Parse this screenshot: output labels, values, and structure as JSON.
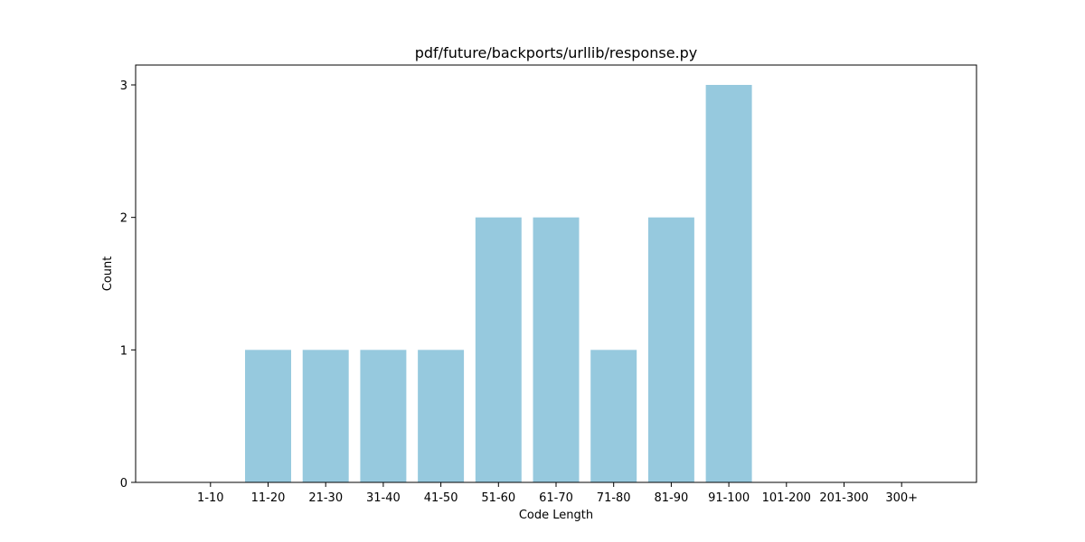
{
  "chart_data": {
    "type": "bar",
    "title": "pdf/future/backports/urllib/response.py",
    "xlabel": "Code Length",
    "ylabel": "Count",
    "categories": [
      "1-10",
      "11-20",
      "21-30",
      "31-40",
      "41-50",
      "51-60",
      "61-70",
      "71-80",
      "81-90",
      "91-100",
      "101-200",
      "201-300",
      "300+"
    ],
    "values": [
      0,
      1,
      1,
      1,
      1,
      2,
      2,
      1,
      2,
      3,
      0,
      0,
      0
    ],
    "yticks": [
      0,
      1,
      2,
      3
    ],
    "ylim": [
      0,
      3.15
    ],
    "grid": false,
    "bar_color": "#96c9de"
  }
}
